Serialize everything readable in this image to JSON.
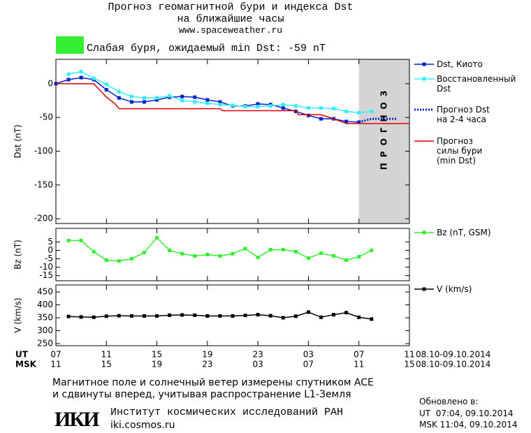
{
  "header": {
    "title": [
      "Прогноз геомагнитной бури и индекса Dst",
      "на ближайшие часы"
    ],
    "url": "www.spaceweather.ru",
    "storm": "Слабая буря, ожидаемый min Dst: -59 nT",
    "storm_color": "#33ee33"
  },
  "chart_data": [
    {
      "type": "line",
      "ylabel": "Dst (nT)",
      "xlim": [
        0,
        28
      ],
      "ylim": [
        -207,
        36
      ],
      "yticks": [
        0,
        -50,
        -100,
        -150,
        -200
      ],
      "forecast_label": "ПРОГНОЗ",
      "forecast_x": [
        24,
        28
      ],
      "series": [
        {
          "name": "Dst, Киото",
          "color": "#0022cc",
          "marker": true,
          "style": "solid",
          "x": [
            0,
            1,
            2,
            3,
            4,
            5,
            6,
            7,
            8,
            9,
            10,
            11,
            12,
            13,
            14,
            15,
            16,
            17,
            18,
            19,
            20,
            21,
            22,
            23,
            24
          ],
          "values": [
            0,
            6,
            9,
            6,
            -9,
            -21,
            -27,
            -27,
            -24,
            -20,
            -19,
            -20,
            -24,
            -27,
            -33,
            -33,
            -30,
            -31,
            -36,
            -41,
            -47,
            -52,
            -52,
            -56,
            -57
          ]
        },
        {
          "name": "Восстановленный\nDst",
          "color": "#33eeff",
          "marker": true,
          "style": "solid",
          "x": [
            1,
            2,
            3,
            4,
            5,
            6,
            7,
            8,
            9,
            10,
            11,
            12,
            13,
            14,
            15,
            16,
            17,
            18,
            19,
            20,
            21,
            22,
            23,
            24,
            25
          ],
          "values": [
            14,
            18,
            8,
            -1,
            -12,
            -19,
            -21,
            -21,
            -18,
            -25,
            -27,
            -29,
            -31,
            -32,
            -34,
            -34,
            -33,
            -31,
            -33,
            -36,
            -36,
            -37,
            -41,
            -43,
            -41
          ]
        },
        {
          "name": "Прогноз Dst\nна 2-4 часа",
          "color": "#0022cc",
          "marker": false,
          "style": "dotted",
          "x": [
            24,
            25,
            26,
            27
          ],
          "values": [
            -57,
            -52,
            -52,
            -52
          ]
        },
        {
          "name": "Прогноз\nсилы бури\n(min Dst)",
          "color": "#dd0000",
          "marker": false,
          "style": "solid",
          "x": [
            0,
            3,
            4,
            4.7,
            5,
            13,
            13.2,
            19,
            19.2,
            21,
            22,
            23,
            28
          ],
          "values": [
            0,
            0,
            -20,
            -30,
            -37,
            -37,
            -40,
            -40,
            -46,
            -46,
            -52,
            -59,
            -59
          ]
        }
      ]
    },
    {
      "type": "line",
      "ylabel": "Bz (nT)",
      "xlim": [
        0,
        28
      ],
      "ylim": [
        -18,
        13
      ],
      "yticks": [
        5,
        0,
        -5,
        -10,
        -15
      ],
      "series": [
        {
          "name": "Bz (nT, GSM)",
          "color": "#33ee33",
          "marker": true,
          "style": "solid",
          "x": [
            1,
            2,
            3,
            4,
            5,
            6,
            7,
            8,
            9,
            10,
            11,
            12,
            13,
            14,
            15,
            16,
            17,
            18,
            19,
            20,
            21,
            22,
            23,
            24,
            25
          ],
          "values": [
            5.8,
            5.8,
            -0.8,
            -5.8,
            -6.3,
            -5,
            -1.3,
            7.5,
            0,
            -2,
            -3.3,
            -2.5,
            -3.3,
            -2,
            1,
            -4.2,
            0.4,
            0.4,
            -0.8,
            -4.6,
            -1.7,
            -3.3,
            -5.8,
            -3.8,
            0
          ]
        }
      ]
    },
    {
      "type": "line",
      "ylabel": "V (km/s)",
      "xlim": [
        0,
        28
      ],
      "ylim": [
        242,
        477
      ],
      "yticks": [
        450,
        400,
        350,
        300,
        250
      ],
      "xticks": [
        {
          "value": 0,
          "label": "07"
        },
        {
          "value": 4,
          "label": "11"
        },
        {
          "value": 8,
          "label": "15"
        },
        {
          "value": 12,
          "label": "19"
        },
        {
          "value": 16,
          "label": "23"
        },
        {
          "value": 20,
          "label": "03"
        },
        {
          "value": 24,
          "label": "07"
        },
        {
          "value": 28,
          "label": "11"
        }
      ],
      "xticks_msk": [
        {
          "value": 0,
          "label": "11"
        },
        {
          "value": 4,
          "label": "15"
        },
        {
          "value": 8,
          "label": "19"
        },
        {
          "value": 12,
          "label": "23"
        },
        {
          "value": 16,
          "label": "03"
        },
        {
          "value": 20,
          "label": "07"
        },
        {
          "value": 24,
          "label": "11"
        },
        {
          "value": 28,
          "label": "15"
        }
      ],
      "xrow_labels": [
        "UT",
        "MSK"
      ],
      "date_range": "08.10-09.10.2014",
      "series": [
        {
          "name": "V (km/s)",
          "color": "#000000",
          "marker": true,
          "style": "solid",
          "x": [
            1,
            2,
            3,
            4,
            5,
            6,
            7,
            8,
            9,
            10,
            11,
            12,
            13,
            14,
            15,
            16,
            17,
            18,
            19,
            20,
            21,
            22,
            23,
            24,
            25
          ],
          "values": [
            355,
            353,
            352,
            356,
            358,
            357,
            357,
            357,
            360,
            361,
            360,
            357,
            357,
            357,
            359,
            362,
            358,
            350,
            356,
            372,
            352,
            362,
            370,
            352,
            345
          ]
        }
      ]
    }
  ],
  "footer": {
    "note": [
      "Магнитное поле и солнечный ветер измерены спутником ACE",
      "и сдвинуты вперед, учитывая распространение L1-Земля"
    ],
    "logo": "ИКИ",
    "institute": "Институт космических исследований РАН",
    "site": "iki.cosmos.ru",
    "updated": [
      "Обновлено в:",
      "UT  07:04, 09.10.2014",
      "MSK 11:04, 09.10.2014"
    ]
  }
}
